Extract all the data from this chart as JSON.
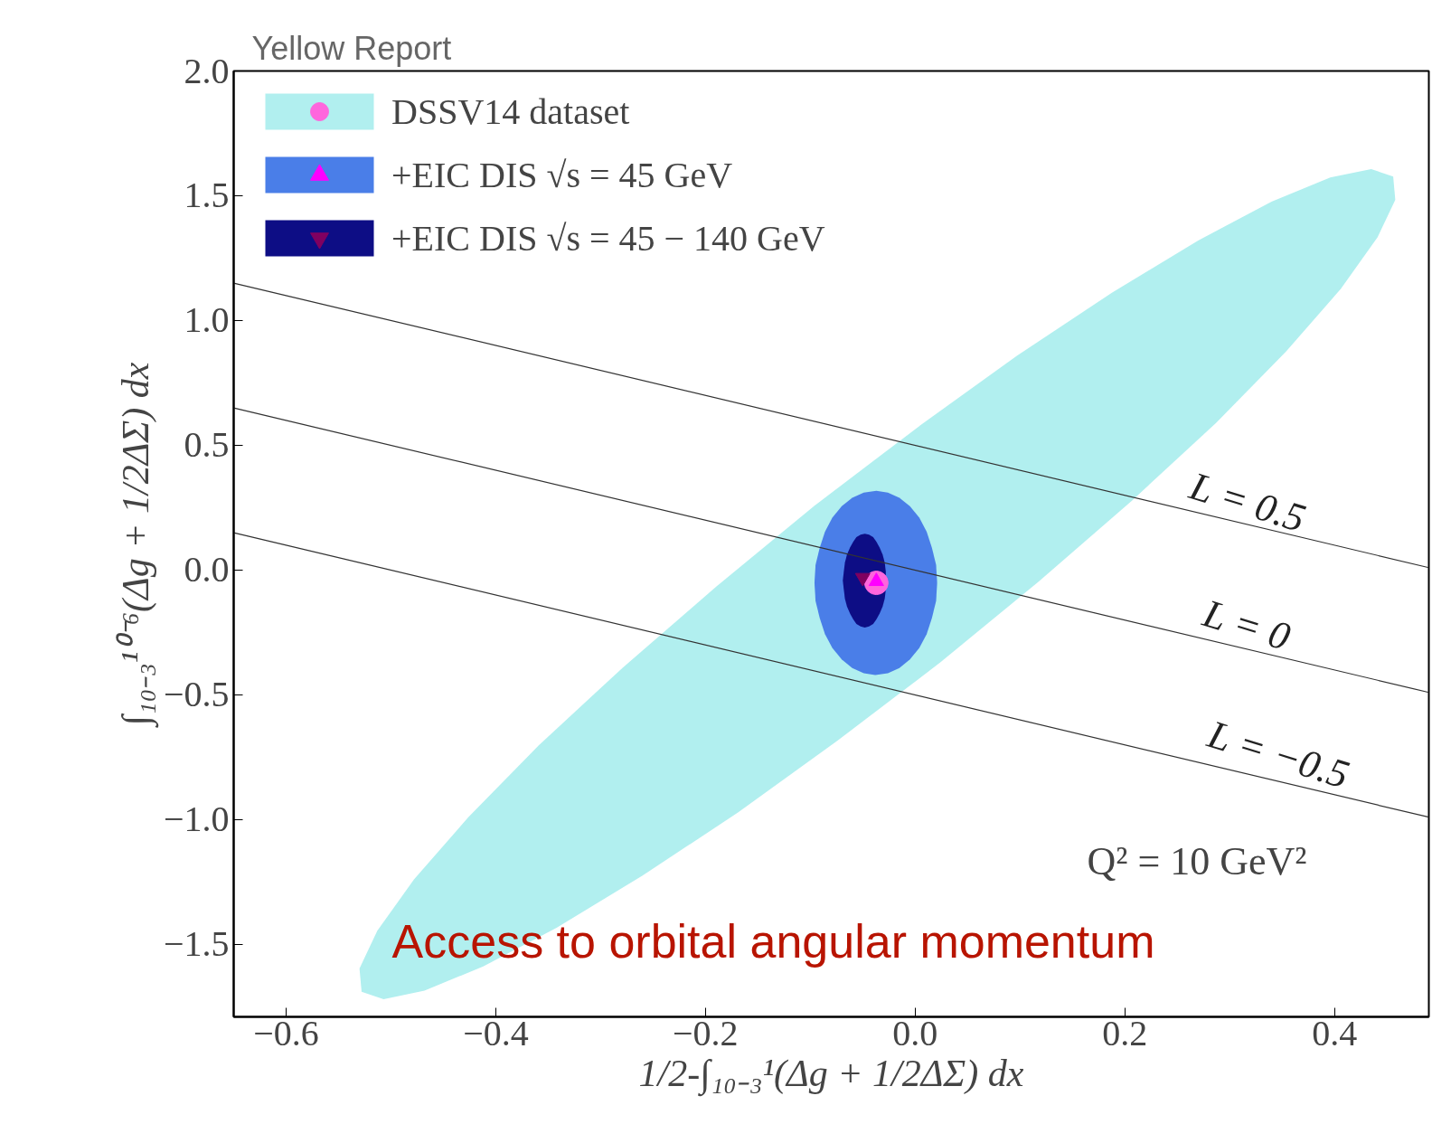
{
  "chart_data": {
    "type": "scatter",
    "title": "Yellow Report",
    "xlabel": "1/2-∫₁₀₋₃¹(Δg + 1/2ΔΣ) dx",
    "ylabel": "∫₁₀₋₃¹⁰⁻⁶(Δg + 1/2ΔΣ) dx",
    "xlim": [
      -0.65,
      0.49
    ],
    "ylim": [
      -1.79,
      2.0
    ],
    "xticks": [
      {
        "value": -0.6,
        "label": "−0.6"
      },
      {
        "value": -0.4,
        "label": "−0.4"
      },
      {
        "value": -0.2,
        "label": "−0.2"
      },
      {
        "value": 0.0,
        "label": "0.0"
      },
      0.2,
      0.4
    ],
    "yticks": [
      {
        "value": -1.5,
        "label": "−1.5"
      },
      {
        "value": -1.0,
        "label": "−1.0"
      },
      {
        "value": -0.5,
        "label": "−0.5"
      },
      {
        "value": 0.0,
        "label": "0.0"
      },
      0.5,
      {
        "value": 1.0,
        "label": "1.0"
      },
      1.5,
      {
        "value": 2.0,
        "label": "2.0"
      }
    ],
    "grid": false,
    "legend": "top left",
    "series": [
      {
        "type": "area",
        "name": "DSSV14 dataset",
        "color": "#b1efef",
        "x": [
          0.456,
          0.458,
          0.441,
          0.406,
          0.354,
          0.287,
          0.207,
          0.118,
          0.024,
          -0.074,
          -0.169,
          -0.26,
          -0.342,
          -0.412,
          -0.468,
          -0.507,
          -0.528,
          -0.53,
          -0.513,
          -0.478,
          -0.426,
          -0.359,
          -0.279,
          -0.19,
          -0.096,
          0.002,
          0.097,
          0.188,
          0.27,
          0.34,
          0.396,
          0.435
        ],
        "values": [
          1.577,
          1.484,
          1.333,
          1.127,
          0.877,
          0.59,
          0.279,
          -0.045,
          -0.37,
          -0.683,
          -0.971,
          -1.224,
          -1.433,
          -1.588,
          -1.685,
          -1.719,
          -1.689,
          -1.596,
          -1.445,
          -1.239,
          -0.989,
          -0.702,
          -0.391,
          -0.067,
          0.258,
          0.571,
          0.859,
          1.112,
          1.321,
          1.476,
          1.573,
          1.607
        ]
      },
      {
        "type": "area",
        "name": "+EIC DIS √s = 45 GeV",
        "color": "#4a7ee8",
        "x": [
          0.021,
          0.02,
          0.016,
          0.011,
          0.004,
          -0.005,
          -0.015,
          -0.026,
          -0.037,
          -0.049,
          -0.06,
          -0.07,
          -0.079,
          -0.086,
          -0.091,
          -0.095,
          -0.096,
          -0.095,
          -0.091,
          -0.086,
          -0.079,
          -0.07,
          -0.06,
          -0.049,
          -0.038,
          -0.026,
          -0.015,
          -0.005,
          0.004,
          0.011,
          0.016,
          0.02
        ],
        "values": [
          -0.051,
          0.021,
          0.09,
          0.154,
          0.21,
          0.256,
          0.29,
          0.311,
          0.318,
          0.311,
          0.29,
          0.256,
          0.21,
          0.154,
          0.09,
          0.021,
          -0.051,
          -0.123,
          -0.192,
          -0.256,
          -0.312,
          -0.358,
          -0.392,
          -0.413,
          -0.42,
          -0.413,
          -0.392,
          -0.358,
          -0.312,
          -0.256,
          -0.192,
          -0.123
        ]
      },
      {
        "type": "area",
        "name": "+EIC DIS √s = 45 − 140 GeV",
        "color": "#0d0d85",
        "x": [
          -0.028,
          -0.028,
          -0.029,
          -0.031,
          -0.034,
          -0.037,
          -0.04,
          -0.044,
          -0.048,
          -0.052,
          -0.056,
          -0.059,
          -0.062,
          -0.065,
          -0.067,
          -0.068,
          -0.069,
          -0.068,
          -0.067,
          -0.065,
          -0.062,
          -0.059,
          -0.056,
          -0.052,
          -0.048,
          -0.044,
          -0.04,
          -0.037,
          -0.034,
          -0.031,
          -0.029,
          -0.028
        ],
        "values": [
          -0.042,
          -0.005,
          0.03,
          0.062,
          0.091,
          0.114,
          0.132,
          0.142,
          0.146,
          0.142,
          0.132,
          0.114,
          0.091,
          0.062,
          0.03,
          -0.005,
          -0.042,
          -0.079,
          -0.114,
          -0.146,
          -0.175,
          -0.198,
          -0.216,
          -0.226,
          -0.23,
          -0.226,
          -0.216,
          -0.198,
          -0.175,
          -0.146,
          -0.114,
          -0.079
        ]
      },
      {
        "color": "#ff66dd",
        "marker": "circle",
        "x": [
          -0.037
        ],
        "values": [
          -0.051
        ]
      },
      {
        "color": "#ff00ff",
        "marker": "triangle",
        "x": [
          -0.037
        ],
        "values": [
          -0.045
        ]
      },
      {
        "color": "#800060",
        "marker": "triangle_down",
        "x": [
          -0.05
        ],
        "values": [
          -0.03
        ]
      },
      {
        "type": "line",
        "color": "#333333",
        "line_style": "solid",
        "x": [
          -0.65,
          0.49
        ],
        "values": [
          1.15,
          0.01
        ]
      },
      {
        "type": "line",
        "color": "#333333",
        "line_style": "solid",
        "x": [
          -0.65,
          0.49
        ],
        "values": [
          0.65,
          -0.49
        ]
      },
      {
        "type": "line",
        "color": "#333333",
        "line_style": "solid",
        "x": [
          -0.65,
          0.49
        ],
        "values": [
          0.15,
          -0.99
        ]
      }
    ],
    "annotations": [
      "L = 0.5",
      "L = 0",
      "L = −0.5",
      "Q² = 10 GeV²",
      "Access to orbital angular momentum"
    ]
  }
}
